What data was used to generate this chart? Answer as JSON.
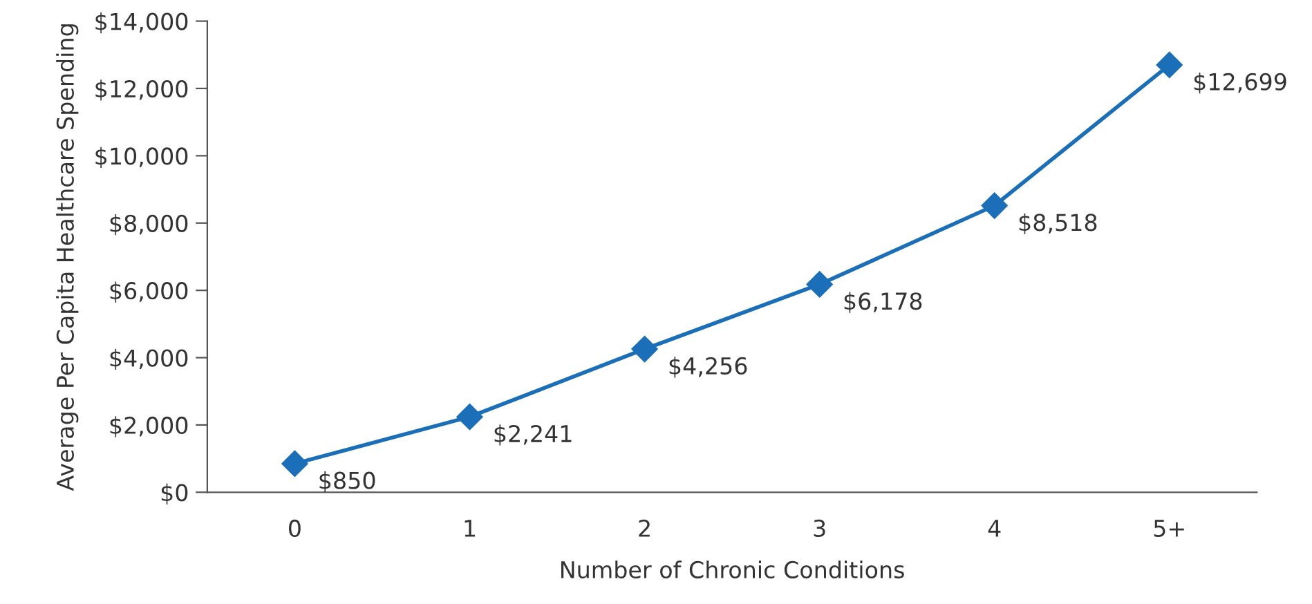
{
  "chart_data": {
    "type": "line",
    "xlabel": "Number of Chronic Conditions",
    "ylabel": "Average Per Capita Healthcare Spending",
    "categories": [
      "0",
      "1",
      "2",
      "3",
      "4",
      "5+"
    ],
    "series": [
      {
        "color": "#1b6fb8",
        "values": [
          850,
          2241,
          4256,
          6178,
          8518,
          12699
        ],
        "value_labels": [
          "$850",
          "$2,241",
          "$4,256",
          "$6,178",
          "$8,518",
          "$12,699"
        ]
      }
    ],
    "ylim": [
      0,
      14000
    ],
    "yticks": [
      {
        "value": 0,
        "label": "$0"
      },
      {
        "value": 2000,
        "label": "$2,000"
      },
      {
        "value": 4000,
        "label": "$4,000"
      },
      {
        "value": 6000,
        "label": "$6,000"
      },
      {
        "value": 8000,
        "label": "$8,000"
      },
      {
        "value": 10000,
        "label": "$10,000"
      },
      {
        "value": 12000,
        "label": "$12,000"
      },
      {
        "value": 14000,
        "label": "$14,000"
      }
    ],
    "grid": false,
    "marker": "diamond",
    "line_style": "solid"
  }
}
